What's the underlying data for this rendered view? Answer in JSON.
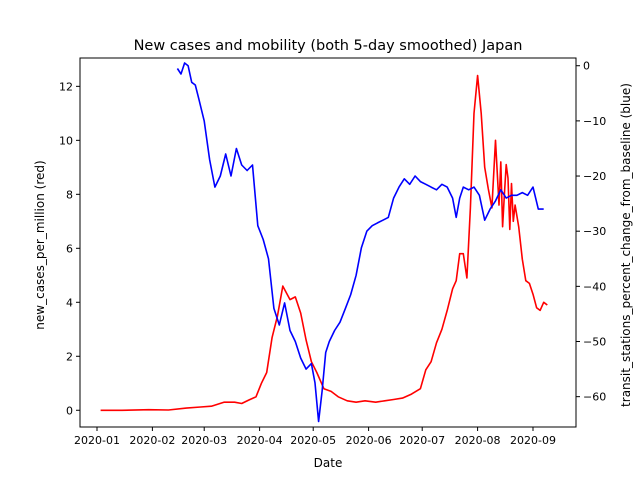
{
  "chart_data": {
    "type": "line",
    "title": "New cases and mobility (both 5-day smoothed) Japan",
    "xlabel": "Date",
    "ylabel_left": "new_cases_per_million (red)",
    "ylabel_right": "transit_stations_percent_change_from_baseline (blue)",
    "x_ticks": [
      "2020-01",
      "2020-02",
      "2020-03",
      "2020-04",
      "2020-05",
      "2020-06",
      "2020-07",
      "2020-08",
      "2020-09"
    ],
    "y_left_ticks": [
      "0",
      "2",
      "4",
      "6",
      "8",
      "10",
      "12"
    ],
    "y_right_ticks": [
      "0",
      "−10",
      "−20",
      "−30",
      "−40",
      "−50",
      "−60"
    ],
    "ylim_left": [
      -0.62,
      13.05
    ],
    "ylim_right": [
      -65.5,
      1.4
    ],
    "grid": false,
    "series": [
      {
        "axis": "left",
        "color": "#ff0000",
        "x": [
          "2020-01-03",
          "2020-01-15",
          "2020-01-30",
          "2020-02-10",
          "2020-02-20",
          "2020-02-28",
          "2020-03-05",
          "2020-03-12",
          "2020-03-18",
          "2020-03-22",
          "2020-03-26",
          "2020-03-30",
          "2020-04-02",
          "2020-04-05",
          "2020-04-08",
          "2020-04-11",
          "2020-04-14",
          "2020-04-18",
          "2020-04-21",
          "2020-04-24",
          "2020-04-27",
          "2020-04-30",
          "2020-05-03",
          "2020-05-07",
          "2020-05-11",
          "2020-05-15",
          "2020-05-20",
          "2020-05-25",
          "2020-05-30",
          "2020-06-05",
          "2020-06-10",
          "2020-06-15",
          "2020-06-20",
          "2020-06-25",
          "2020-06-30",
          "2020-07-03",
          "2020-07-06",
          "2020-07-09",
          "2020-07-12",
          "2020-07-15",
          "2020-07-18",
          "2020-07-20",
          "2020-07-22",
          "2020-07-24",
          "2020-07-26",
          "2020-07-28",
          "2020-07-30",
          "2020-08-01",
          "2020-08-03",
          "2020-08-05",
          "2020-08-07",
          "2020-08-09",
          "2020-08-11",
          "2020-08-13",
          "2020-08-14",
          "2020-08-15",
          "2020-08-16",
          "2020-08-17",
          "2020-08-18",
          "2020-08-19",
          "2020-08-20",
          "2020-08-21",
          "2020-08-22",
          "2020-08-24",
          "2020-08-26",
          "2020-08-28",
          "2020-08-30",
          "2020-09-01",
          "2020-09-03",
          "2020-09-05",
          "2020-09-07",
          "2020-09-09"
        ],
        "values": [
          0.0,
          0.0,
          0.02,
          0.01,
          0.08,
          0.12,
          0.15,
          0.3,
          0.3,
          0.25,
          0.38,
          0.5,
          1.0,
          1.4,
          2.7,
          3.5,
          4.6,
          4.1,
          4.2,
          3.6,
          2.6,
          1.8,
          1.4,
          0.8,
          0.7,
          0.5,
          0.35,
          0.3,
          0.35,
          0.3,
          0.35,
          0.4,
          0.45,
          0.6,
          0.8,
          1.5,
          1.8,
          2.5,
          3.0,
          3.7,
          4.5,
          4.8,
          5.8,
          5.8,
          4.9,
          7.5,
          11.0,
          12.4,
          11.0,
          9.0,
          8.2,
          7.5,
          10.0,
          7.6,
          9.2,
          6.8,
          8.0,
          9.1,
          8.6,
          6.7,
          8.4,
          7.0,
          7.6,
          6.8,
          5.6,
          4.8,
          4.7,
          4.3,
          3.8,
          3.7,
          4.0,
          3.9
        ]
      },
      {
        "axis": "right",
        "color": "#0000ff",
        "x": [
          "2020-02-15",
          "2020-02-17",
          "2020-02-19",
          "2020-02-21",
          "2020-02-23",
          "2020-02-25",
          "2020-02-27",
          "2020-03-01",
          "2020-03-04",
          "2020-03-07",
          "2020-03-10",
          "2020-03-13",
          "2020-03-16",
          "2020-03-19",
          "2020-03-22",
          "2020-03-25",
          "2020-03-28",
          "2020-03-31",
          "2020-04-03",
          "2020-04-06",
          "2020-04-09",
          "2020-04-12",
          "2020-04-15",
          "2020-04-18",
          "2020-04-21",
          "2020-04-24",
          "2020-04-27",
          "2020-04-30",
          "2020-05-02",
          "2020-05-04",
          "2020-05-06",
          "2020-05-08",
          "2020-05-10",
          "2020-05-13",
          "2020-05-16",
          "2020-05-19",
          "2020-05-22",
          "2020-05-25",
          "2020-05-28",
          "2020-05-31",
          "2020-06-03",
          "2020-06-06",
          "2020-06-09",
          "2020-06-12",
          "2020-06-15",
          "2020-06-18",
          "2020-06-21",
          "2020-06-24",
          "2020-06-27",
          "2020-06-30",
          "2020-07-03",
          "2020-07-06",
          "2020-07-09",
          "2020-07-12",
          "2020-07-15",
          "2020-07-18",
          "2020-07-20",
          "2020-07-22",
          "2020-07-24",
          "2020-07-27",
          "2020-07-30",
          "2020-08-02",
          "2020-08-05",
          "2020-08-08",
          "2020-08-11",
          "2020-08-14",
          "2020-08-17",
          "2020-08-20",
          "2020-08-23",
          "2020-08-26",
          "2020-08-29",
          "2020-09-01",
          "2020-09-04",
          "2020-09-07"
        ],
        "values": [
          -0.5,
          -1.5,
          0.5,
          0,
          -3.0,
          -3.5,
          -6.0,
          -10.0,
          -17.0,
          -22.0,
          -20.0,
          -16.0,
          -20.0,
          -15.0,
          -18.0,
          -19.0,
          -18.0,
          -29.0,
          -31.5,
          -35.0,
          -44.0,
          -47.0,
          -43.0,
          -48.0,
          -50.0,
          -53.0,
          -55.0,
          -54.0,
          -57.5,
          -64.5,
          -59.0,
          -52.0,
          -50.0,
          -48.0,
          -46.5,
          -44.0,
          -41.5,
          -38.0,
          -33.0,
          -30.0,
          -29.0,
          -28.5,
          -28.0,
          -27.5,
          -24.0,
          -22.0,
          -20.5,
          -21.5,
          -20.0,
          -21.0,
          -21.5,
          -22.0,
          -22.5,
          -21.5,
          -22.0,
          -24.0,
          -27.5,
          -24.0,
          -22.0,
          -22.5,
          -22.0,
          -23.5,
          -28.0,
          -26.0,
          -24.5,
          -22.5,
          -24.0,
          -23.5,
          -23.5,
          -23.0,
          -23.5,
          -22.0,
          -26.0,
          -26.0
        ]
      }
    ]
  }
}
